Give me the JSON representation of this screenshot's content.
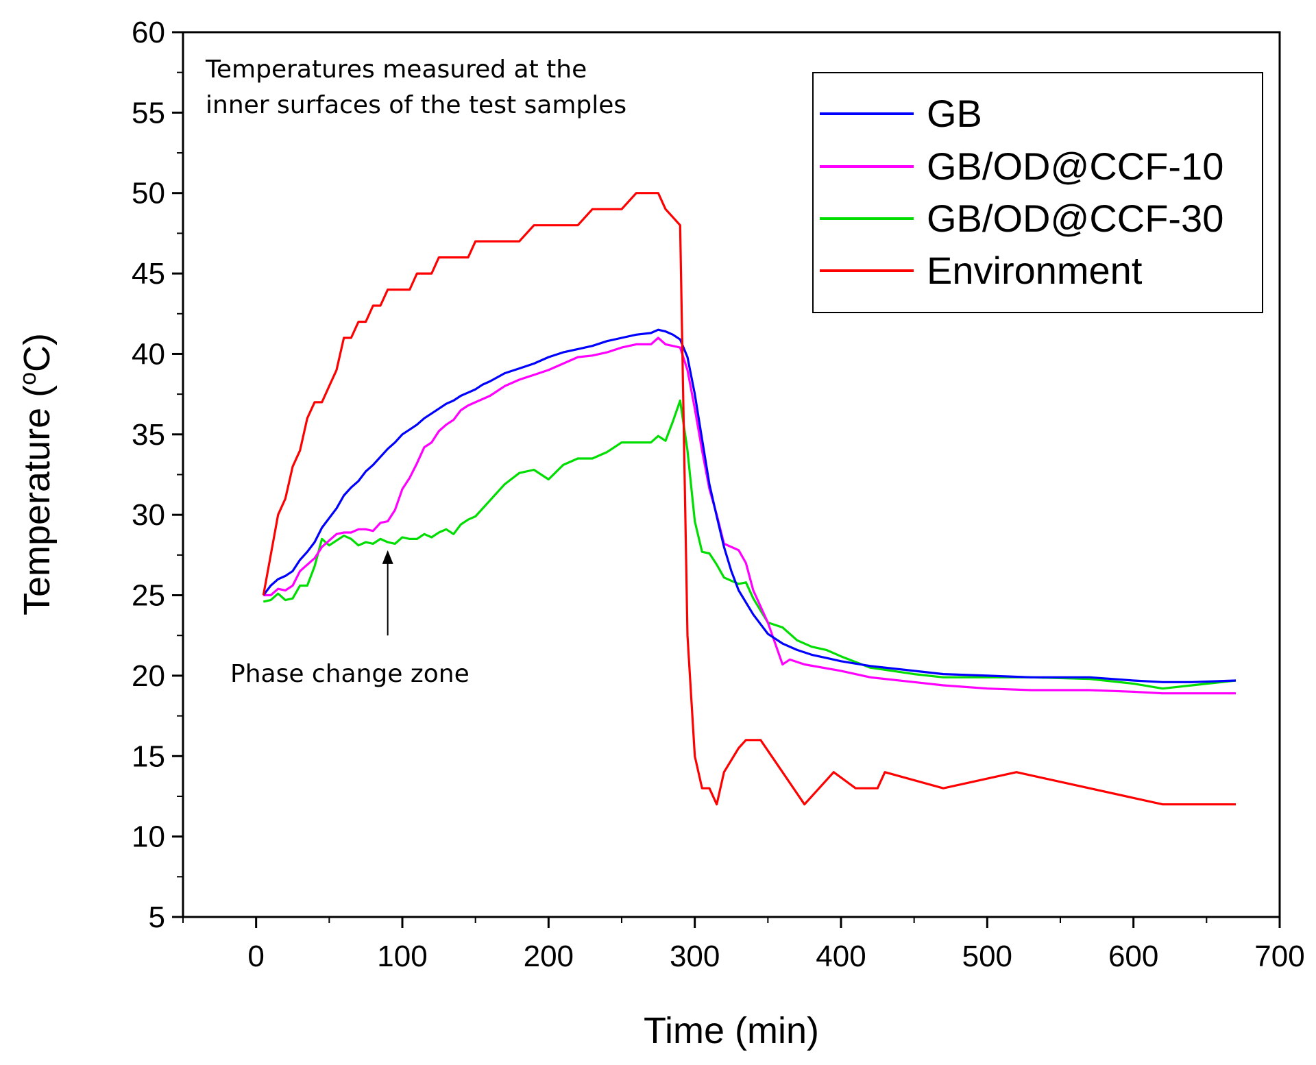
{
  "chart_data": {
    "type": "line",
    "xlabel": "Time (min)",
    "ylabel": "Temperature (°C)",
    "ylabel_parts": {
      "main": "Temperature (",
      "sup": "o",
      "unit": "C)"
    },
    "xlim": [
      -50,
      700
    ],
    "ylim": [
      5,
      60
    ],
    "x_ticks": [
      0,
      100,
      200,
      300,
      400,
      500,
      600,
      700
    ],
    "y_ticks": [
      5,
      10,
      15,
      20,
      25,
      30,
      35,
      40,
      45,
      50,
      55,
      60
    ],
    "x_tick_labels": [
      "0",
      "100",
      "200",
      "300",
      "400",
      "500",
      "600",
      "700"
    ],
    "y_tick_labels": [
      "5",
      "10",
      "15",
      "20",
      "25",
      "30",
      "35",
      "40",
      "45",
      "50",
      "55",
      "60"
    ],
    "grid": false,
    "legend_position": "top-right",
    "annotations": [
      {
        "id": "note",
        "lines": [
          "Temperatures measured at the",
          "inner surfaces of the test samples"
        ]
      },
      {
        "id": "phase",
        "text": "Phase change zone",
        "arrow_x": 90,
        "arrow_from_y": 22.5,
        "arrow_to_y": 27.8
      }
    ],
    "series": [
      {
        "name": "GB",
        "color": "#0000ff",
        "x": [
          5,
          10,
          15,
          20,
          25,
          30,
          35,
          40,
          45,
          50,
          55,
          60,
          65,
          70,
          75,
          80,
          85,
          90,
          95,
          100,
          105,
          110,
          115,
          120,
          125,
          130,
          135,
          140,
          145,
          150,
          155,
          160,
          170,
          180,
          190,
          200,
          210,
          220,
          230,
          240,
          250,
          260,
          270,
          275,
          280,
          285,
          290,
          295,
          300,
          305,
          310,
          315,
          320,
          325,
          330,
          340,
          350,
          360,
          370,
          380,
          390,
          400,
          420,
          450,
          470,
          500,
          530,
          570,
          600,
          620,
          640,
          670
        ],
        "y": [
          25,
          25.6,
          26.0,
          26.2,
          26.5,
          27.2,
          27.7,
          28.3,
          29.2,
          29.8,
          30.4,
          31.2,
          31.7,
          32.1,
          32.7,
          33.1,
          33.6,
          34.1,
          34.5,
          35.0,
          35.3,
          35.6,
          36.0,
          36.3,
          36.6,
          36.9,
          37.1,
          37.4,
          37.6,
          37.8,
          38.1,
          38.3,
          38.8,
          39.1,
          39.4,
          39.8,
          40.1,
          40.3,
          40.5,
          40.8,
          41.0,
          41.2,
          41.3,
          41.5,
          41.4,
          41.2,
          40.9,
          39.8,
          37.5,
          34.7,
          31.9,
          29.9,
          28.0,
          26.5,
          25.3,
          23.8,
          22.6,
          22.0,
          21.6,
          21.3,
          21.1,
          20.9,
          20.6,
          20.3,
          20.1,
          20.0,
          19.9,
          19.9,
          19.7,
          19.6,
          19.6,
          19.7
        ]
      },
      {
        "name": "GB/OD@CCF-10",
        "color": "#ff00ff",
        "x": [
          5,
          10,
          15,
          20,
          25,
          30,
          35,
          40,
          45,
          50,
          55,
          60,
          65,
          70,
          75,
          80,
          85,
          90,
          95,
          100,
          105,
          110,
          115,
          120,
          125,
          130,
          135,
          140,
          145,
          150,
          160,
          170,
          180,
          190,
          200,
          210,
          220,
          230,
          240,
          250,
          260,
          270,
          275,
          280,
          290,
          295,
          300,
          305,
          310,
          315,
          320,
          330,
          335,
          340,
          350,
          360,
          365,
          375,
          400,
          420,
          450,
          470,
          500,
          530,
          570,
          600,
          620,
          640,
          670
        ],
        "y": [
          25,
          25.0,
          25.4,
          25.3,
          25.6,
          26.5,
          26.9,
          27.3,
          28.0,
          28.4,
          28.8,
          28.9,
          28.9,
          29.1,
          29.1,
          29.0,
          29.5,
          29.6,
          30.3,
          31.6,
          32.3,
          33.2,
          34.2,
          34.5,
          35.2,
          35.6,
          35.9,
          36.5,
          36.8,
          37.0,
          37.4,
          38.0,
          38.4,
          38.7,
          39.0,
          39.4,
          39.8,
          39.9,
          40.1,
          40.4,
          40.6,
          40.6,
          41.0,
          40.6,
          40.4,
          39.0,
          36.6,
          34.0,
          31.6,
          30.0,
          28.2,
          27.8,
          27.0,
          25.3,
          23.3,
          20.7,
          21.0,
          20.7,
          20.3,
          19.9,
          19.6,
          19.4,
          19.2,
          19.1,
          19.1,
          19.0,
          18.9,
          18.9,
          18.9
        ]
      },
      {
        "name": "GB/OD@CCF-30",
        "color": "#00dd00",
        "x": [
          5,
          10,
          15,
          20,
          25,
          30,
          35,
          40,
          45,
          50,
          55,
          60,
          65,
          70,
          75,
          80,
          85,
          90,
          95,
          100,
          105,
          110,
          115,
          120,
          125,
          130,
          135,
          140,
          145,
          150,
          160,
          170,
          180,
          190,
          200,
          210,
          220,
          230,
          240,
          250,
          260,
          270,
          275,
          280,
          285,
          290,
          295,
          300,
          305,
          310,
          315,
          320,
          330,
          335,
          340,
          350,
          360,
          370,
          380,
          390,
          400,
          420,
          450,
          470,
          500,
          530,
          570,
          600,
          620,
          640,
          670
        ],
        "y": [
          24.6,
          24.7,
          25.1,
          24.7,
          24.8,
          25.6,
          25.6,
          26.8,
          28.5,
          28.1,
          28.4,
          28.7,
          28.5,
          28.1,
          28.3,
          28.2,
          28.5,
          28.3,
          28.2,
          28.6,
          28.5,
          28.5,
          28.8,
          28.6,
          28.9,
          29.1,
          28.8,
          29.4,
          29.7,
          29.9,
          30.9,
          31.9,
          32.6,
          32.8,
          32.2,
          33.1,
          33.5,
          33.5,
          33.9,
          34.5,
          34.5,
          34.5,
          34.9,
          34.6,
          35.8,
          37.1,
          34.0,
          29.6,
          27.7,
          27.6,
          26.9,
          26.1,
          25.7,
          25.8,
          24.8,
          23.3,
          23.0,
          22.2,
          21.8,
          21.6,
          21.2,
          20.5,
          20.1,
          19.9,
          19.9,
          19.9,
          19.8,
          19.5,
          19.2,
          19.4,
          19.7
        ]
      },
      {
        "name": "Environment",
        "color": "#ff0000",
        "x": [
          5,
          10,
          15,
          20,
          25,
          30,
          35,
          40,
          45,
          50,
          55,
          60,
          65,
          70,
          75,
          80,
          85,
          90,
          95,
          100,
          105,
          110,
          115,
          120,
          125,
          130,
          135,
          140,
          145,
          150,
          160,
          170,
          180,
          190,
          200,
          210,
          220,
          230,
          240,
          250,
          260,
          270,
          275,
          280,
          285,
          290,
          295,
          300,
          305,
          310,
          315,
          320,
          330,
          335,
          340,
          345,
          360,
          375,
          395,
          410,
          425,
          430,
          470,
          520,
          620,
          640,
          670
        ],
        "y": [
          25,
          27.5,
          30.0,
          31.0,
          33.0,
          34.0,
          36.0,
          37.0,
          37.0,
          38.0,
          39.0,
          41.0,
          41.0,
          42.0,
          42.0,
          43.0,
          43.0,
          44.0,
          44.0,
          44.0,
          44.0,
          45.0,
          45.0,
          45.0,
          46.0,
          46.0,
          46.0,
          46.0,
          46.0,
          47.0,
          47.0,
          47.0,
          47.0,
          48.0,
          48.0,
          48.0,
          48.0,
          49.0,
          49.0,
          49.0,
          50.0,
          50.0,
          50.0,
          49.0,
          48.5,
          48.0,
          22.5,
          15.0,
          13.0,
          13.0,
          12.0,
          14.0,
          15.5,
          16.0,
          16.0,
          16.0,
          14.0,
          12.0,
          14.0,
          13.0,
          13.0,
          14.0,
          13.0,
          14.0,
          12.0,
          12.0,
          12.0
        ]
      }
    ]
  }
}
